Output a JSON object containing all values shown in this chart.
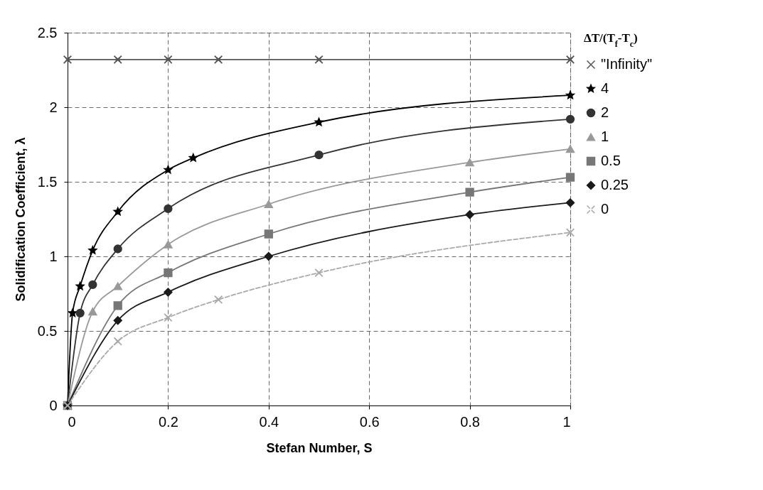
{
  "chart_data": {
    "type": "line",
    "xlabel": "Stefan Number, S",
    "ylabel": "Solidification Coefficient, λ",
    "legend_title": "ΔT/(T$_{f}$-T$_{c}$)",
    "xlim": [
      0,
      1
    ],
    "xticks": [
      0,
      0.2,
      0.4,
      0.6,
      0.8,
      1
    ],
    "ylim": [
      0,
      2.5
    ],
    "yticks": [
      0,
      0.5,
      1,
      1.5,
      2,
      2.5
    ],
    "grid": true,
    "legend": "right",
    "line_style": "solid",
    "series": [
      {
        "name": "\"Infinity\"",
        "color": "#555555",
        "marker": "cross",
        "x": [
          0,
          0.1,
          0.2,
          0.3,
          0.5,
          1
        ],
        "values": [
          2.32,
          2.32,
          2.32,
          2.32,
          2.32,
          2.32
        ]
      },
      {
        "name": "4",
        "color": "#000000",
        "marker": "star",
        "x": [
          0,
          0.01,
          0.025,
          0.05,
          0.1,
          0.2,
          0.25,
          0.5,
          1
        ],
        "values": [
          0,
          0.62,
          0.8,
          1.04,
          1.3,
          1.58,
          1.66,
          1.9,
          2.08
        ]
      },
      {
        "name": "2",
        "color": "#333333",
        "marker": "circle",
        "x": [
          0,
          0.025,
          0.05,
          0.1,
          0.2,
          0.5,
          1
        ],
        "values": [
          0,
          0.62,
          0.81,
          1.05,
          1.32,
          1.68,
          1.92
        ]
      },
      {
        "name": "1",
        "color": "#999999",
        "marker": "triangle",
        "x": [
          0,
          0.05,
          0.1,
          0.2,
          0.4,
          0.8,
          1
        ],
        "values": [
          0,
          0.63,
          0.8,
          1.08,
          1.35,
          1.63,
          1.72
        ]
      },
      {
        "name": "0.5",
        "color": "#777777",
        "marker": "square",
        "x": [
          0,
          0.1,
          0.2,
          0.4,
          0.8,
          1
        ],
        "values": [
          0,
          0.67,
          0.89,
          1.15,
          1.43,
          1.53
        ]
      },
      {
        "name": "0.25",
        "color": "#1a1a1a",
        "marker": "diamond",
        "x": [
          0,
          0.1,
          0.2,
          0.4,
          0.8,
          1
        ],
        "values": [
          0,
          0.57,
          0.76,
          1.0,
          1.28,
          1.36
        ]
      },
      {
        "name": "0",
        "color": "#aaaaaa",
        "marker": "cross",
        "line_style": "dashed",
        "x": [
          0,
          0.1,
          0.2,
          0.3,
          0.5,
          1
        ],
        "values": [
          0,
          0.43,
          0.59,
          0.71,
          0.89,
          1.16
        ]
      }
    ]
  }
}
